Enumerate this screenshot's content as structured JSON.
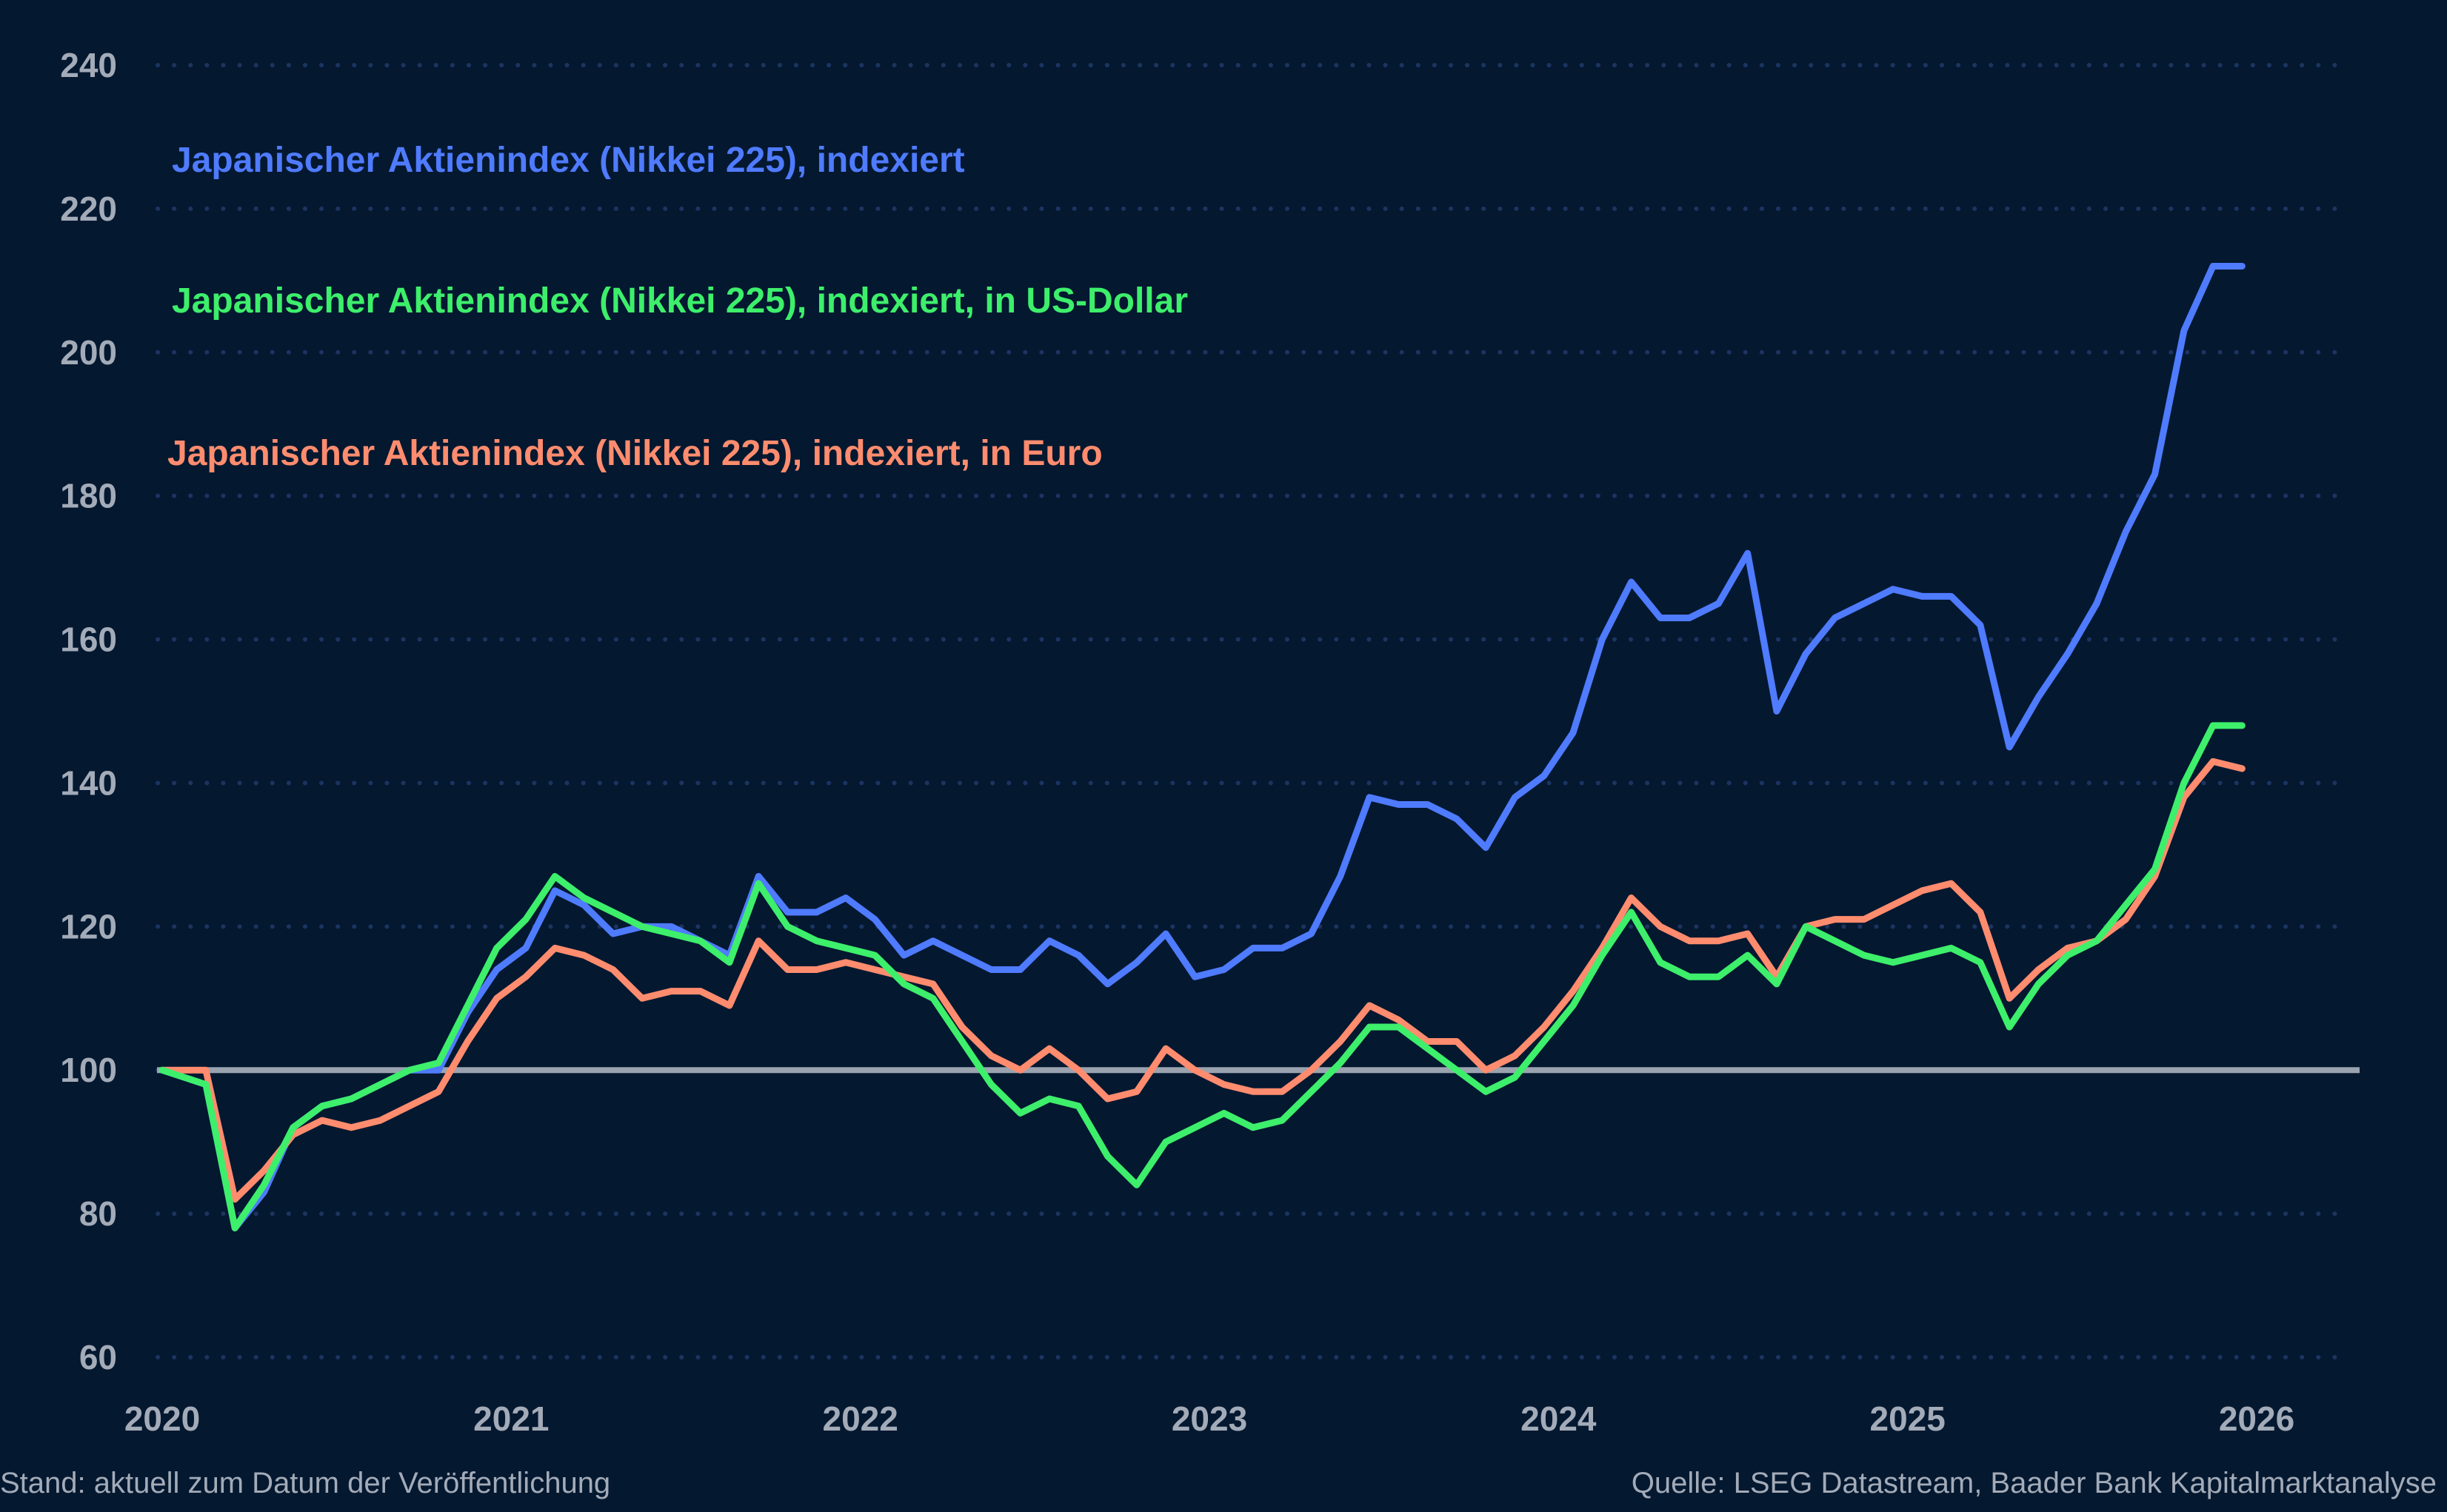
{
  "chart_data": {
    "type": "line",
    "title": "",
    "xlabel": "",
    "ylabel": "",
    "ylim": [
      60,
      240
    ],
    "xlim": [
      "2020-01",
      "2026-01"
    ],
    "yticks": [
      "60",
      "80",
      "100",
      "120",
      "140",
      "160",
      "180",
      "200",
      "220",
      "240"
    ],
    "xticks": [
      "2020",
      "2021",
      "2022",
      "2023",
      "2024",
      "2025",
      "2026"
    ],
    "grid": "horizontal dotted",
    "reference_line": {
      "y": 100,
      "color": "#9aa3af"
    },
    "x": [
      "2020-01",
      "2020-02",
      "2020-03",
      "2020-04",
      "2020-05",
      "2020-06",
      "2020-07",
      "2020-08",
      "2020-09",
      "2020-10",
      "2020-11",
      "2020-12",
      "2021-01",
      "2021-02",
      "2021-03",
      "2021-04",
      "2021-05",
      "2021-06",
      "2021-07",
      "2021-08",
      "2021-09",
      "2021-10",
      "2021-11",
      "2021-12",
      "2022-01",
      "2022-02",
      "2022-03",
      "2022-04",
      "2022-05",
      "2022-06",
      "2022-07",
      "2022-08",
      "2022-09",
      "2022-10",
      "2022-11",
      "2022-12",
      "2023-01",
      "2023-02",
      "2023-03",
      "2023-04",
      "2023-05",
      "2023-06",
      "2023-07",
      "2023-08",
      "2023-09",
      "2023-10",
      "2023-11",
      "2023-12",
      "2024-01",
      "2024-02",
      "2024-03",
      "2024-04",
      "2024-05",
      "2024-06",
      "2024-07",
      "2024-08",
      "2024-09",
      "2024-10",
      "2024-11",
      "2024-12",
      "2025-01",
      "2025-02",
      "2025-03",
      "2025-04",
      "2025-05",
      "2025-06",
      "2025-07",
      "2025-08",
      "2025-09",
      "2025-10",
      "2025-11",
      "2025-12"
    ],
    "series": [
      {
        "name": "Japanischer Aktienindex (Nikkei 225), indexiert",
        "color": "#4f7bff",
        "values": [
          100,
          98,
          78,
          83,
          92,
          95,
          96,
          98,
          100,
          100,
          108,
          114,
          117,
          125,
          123,
          119,
          120,
          120,
          118,
          116,
          127,
          122,
          122,
          124,
          121,
          116,
          118,
          116,
          114,
          114,
          118,
          116,
          112,
          115,
          119,
          113,
          114,
          117,
          117,
          119,
          127,
          138,
          137,
          137,
          135,
          131,
          138,
          141,
          147,
          160,
          168,
          163,
          163,
          165,
          172,
          150,
          158,
          163,
          165,
          167,
          166,
          166,
          162,
          145,
          152,
          158,
          165,
          175,
          183,
          203,
          212,
          212
        ]
      },
      {
        "name": "Japanischer Aktienindex (Nikkei 225), indexiert, in US-Dollar",
        "color": "#3def6b",
        "values": [
          100,
          98,
          78,
          84,
          92,
          95,
          96,
          98,
          100,
          101,
          109,
          117,
          121,
          127,
          124,
          122,
          120,
          119,
          118,
          115,
          126,
          120,
          118,
          117,
          116,
          112,
          110,
          104,
          98,
          94,
          96,
          95,
          88,
          84,
          90,
          92,
          94,
          92,
          93,
          97,
          101,
          106,
          106,
          103,
          100,
          97,
          99,
          104,
          109,
          116,
          122,
          115,
          113,
          113,
          116,
          112,
          120,
          118,
          116,
          115,
          116,
          117,
          115,
          106,
          112,
          116,
          118,
          123,
          128,
          140,
          148,
          148
        ]
      },
      {
        "name": "Japanischer Aktienindex (Nikkei 225), indexiert, in Euro",
        "color": "#ff8c6e",
        "values": [
          100,
          100,
          82,
          86,
          91,
          93,
          92,
          93,
          95,
          97,
          104,
          110,
          113,
          117,
          116,
          114,
          110,
          111,
          111,
          109,
          118,
          114,
          114,
          115,
          114,
          113,
          112,
          106,
          102,
          100,
          103,
          100,
          96,
          97,
          103,
          100,
          98,
          97,
          97,
          100,
          104,
          109,
          107,
          104,
          104,
          100,
          102,
          106,
          111,
          117,
          124,
          120,
          118,
          118,
          119,
          113,
          120,
          121,
          121,
          123,
          125,
          126,
          122,
          110,
          114,
          117,
          118,
          121,
          127,
          138,
          143,
          142
        ]
      }
    ],
    "legend_placement": "top-left"
  },
  "footer": {
    "left": "Stand: aktuell zum Datum der Veröffentlichung",
    "right": "Quelle: LSEG Datastream, Baader Bank Kapitalmarktanalyse"
  }
}
